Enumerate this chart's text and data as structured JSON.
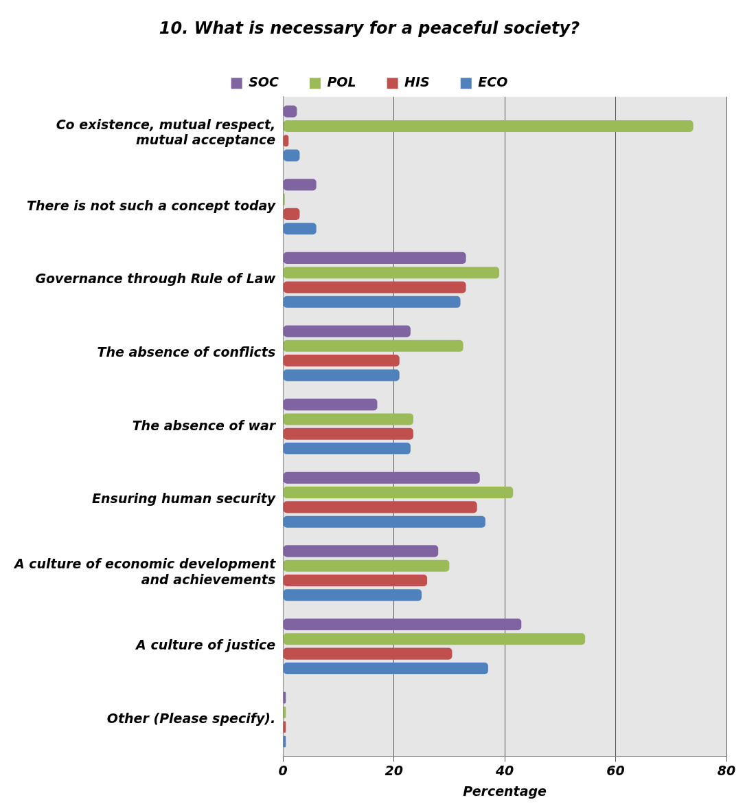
{
  "chart_data": {
    "type": "bar",
    "orientation": "horizontal",
    "title": "10. What is necessary for a peaceful society?",
    "xlabel": "Percentage",
    "categories": [
      "Co existence, mutual respect, mutual acceptance",
      "There is not such a concept today",
      "Governance through Rule of Law",
      "The absence of conflicts",
      "The absence of war",
      "Ensuring human security",
      "A culture of economic development and achievements",
      "A culture of justice",
      "Other (Please specify)."
    ],
    "series": [
      {
        "name": "SOC",
        "color": "#8064a2",
        "values": [
          2.5,
          6,
          33,
          23,
          17,
          35.5,
          28,
          43,
          0.5
        ]
      },
      {
        "name": "POL",
        "color": "#9bbb59",
        "values": [
          74,
          0.3,
          39,
          32.5,
          23.5,
          41.5,
          30,
          54.5,
          0.5
        ]
      },
      {
        "name": "HIS",
        "color": "#c0504d",
        "values": [
          1,
          3,
          33,
          21,
          23.5,
          35,
          26,
          30.5,
          0.5
        ]
      },
      {
        "name": "ECO",
        "color": "#4f81bd",
        "values": [
          3,
          6,
          32,
          21,
          23,
          36.5,
          25,
          37,
          0.5
        ]
      }
    ],
    "xlim": [
      0,
      80
    ],
    "xticks": [
      0,
      20,
      40,
      60,
      80
    ],
    "grid": "x",
    "legend": "top"
  }
}
